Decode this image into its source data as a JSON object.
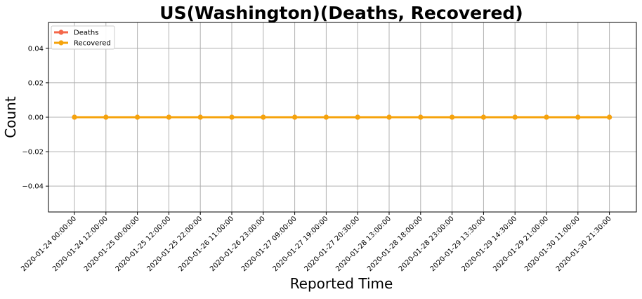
{
  "chart_data": {
    "type": "line",
    "title": "US(Washington)(Deaths, Recovered)",
    "xlabel": "Reported Time",
    "ylabel": "Count",
    "ylim": [
      -0.055,
      0.055
    ],
    "yticks": [
      -0.04,
      -0.02,
      0.0,
      0.02,
      0.04
    ],
    "ytick_labels": [
      "−0.04",
      "−0.02",
      "0.00",
      "0.02",
      "0.04"
    ],
    "grid": true,
    "legend_position": "top-left",
    "x": [
      "2020-01-24 00:00:00",
      "2020-01-24 12:00:00",
      "2020-01-25 00:00:00",
      "2020-01-25 12:00:00",
      "2020-01-25 22:00:00",
      "2020-01-26 11:00:00",
      "2020-01-26 23:00:00",
      "2020-01-27 09:00:00",
      "2020-01-27 19:00:00",
      "2020-01-27 20:30:00",
      "2020-01-28 13:00:00",
      "2020-01-28 18:00:00",
      "2020-01-28 23:00:00",
      "2020-01-29 13:30:00",
      "2020-01-29 14:30:00",
      "2020-01-29 21:00:00",
      "2020-01-30 11:00:00",
      "2020-01-30 21:30:00"
    ],
    "series": [
      {
        "name": "Deaths",
        "color": "#f4684b",
        "values": [
          0,
          0,
          0,
          0,
          0,
          0,
          0,
          0,
          0,
          0,
          0,
          0,
          0,
          0,
          0,
          0,
          0,
          0
        ]
      },
      {
        "name": "Recovered",
        "color": "#f5a30c",
        "values": [
          0,
          0,
          0,
          0,
          0,
          0,
          0,
          0,
          0,
          0,
          0,
          0,
          0,
          0,
          0,
          0,
          0,
          0
        ]
      }
    ]
  }
}
